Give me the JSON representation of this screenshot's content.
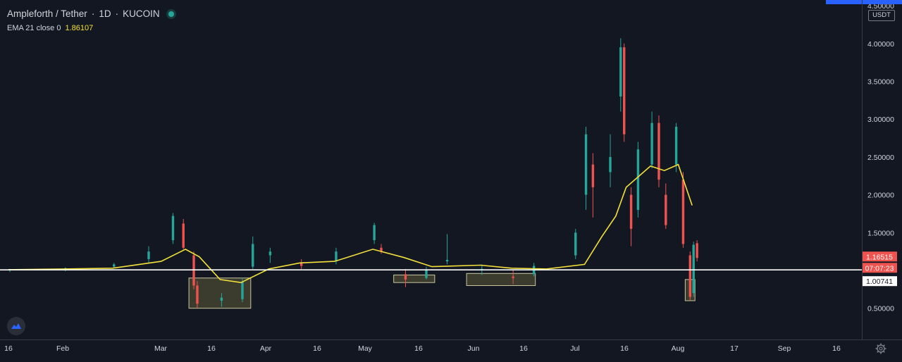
{
  "header": {
    "symbol": "Ampleforth / Tether",
    "sep1": "·",
    "interval": "1D",
    "sep2": "·",
    "exchange": "KUCOIN",
    "indicator_label": "EMA 21 close 0",
    "indicator_value": "1.86107"
  },
  "price_scale": {
    "currency": "USDT",
    "tick_labels": [
      "4.50000",
      "4.00000",
      "3.50000",
      "3.00000",
      "2.50000",
      "2.00000",
      "1.50000",
      "0.50000"
    ]
  },
  "tags": {
    "last_price": "1.16515",
    "countdown": "07:07:23",
    "level": "1.00741"
  },
  "time_axis": {
    "labels": [
      "16",
      "Feb",
      "Mar",
      "16",
      "Apr",
      "16",
      "May",
      "16",
      "Jun",
      "16",
      "Jul",
      "16",
      "Aug",
      "17",
      "Sep",
      "16"
    ]
  },
  "colors": {
    "background": "#131722",
    "up": "#26a69a",
    "down": "#ef5350",
    "ema": "#f3e03b",
    "level_line": "#ffffff",
    "zone_fill": "#4a4a32",
    "zone_stroke": "#c9c6a0"
  },
  "chart_data": {
    "type": "candlestick",
    "title": "Ampleforth / Tether · 1D · KUCOIN",
    "ylim": [
      0.3,
      4.5
    ],
    "ylabel": "USDT",
    "horizontal_level": 1.00741,
    "ema_series": {
      "name": "EMA 21 close 0",
      "x": [
        "Jan 16",
        "Feb 1",
        "Feb 15",
        "Mar 1",
        "Mar 8",
        "Mar 12",
        "Mar 18",
        "Mar 24",
        "Apr 1",
        "Apr 10",
        "Apr 20",
        "May 1",
        "May 10",
        "May 18",
        "Jun 1",
        "Jun 10",
        "Jun 20",
        "Jul 1",
        "Jul 6",
        "Jul 10",
        "Jul 13",
        "Jul 16",
        "Jul 20",
        "Jul 24",
        "Jul 28",
        "Aug 1"
      ],
      "values": [
        1.01,
        1.02,
        1.03,
        1.12,
        1.28,
        1.18,
        0.88,
        0.84,
        1.02,
        1.1,
        1.12,
        1.28,
        1.17,
        1.05,
        1.07,
        1.03,
        1.02,
        1.08,
        1.45,
        1.72,
        2.1,
        2.22,
        2.38,
        2.32,
        2.4,
        1.86
      ]
    },
    "candles": [
      {
        "x": "Jan 16",
        "o": 1.0,
        "h": 1.02,
        "l": 0.98,
        "c": 1.01
      },
      {
        "x": "Feb 1",
        "o": 1.01,
        "h": 1.04,
        "l": 0.99,
        "c": 1.03
      },
      {
        "x": "Feb 15",
        "o": 1.05,
        "h": 1.1,
        "l": 1.03,
        "c": 1.08
      },
      {
        "x": "Feb 25",
        "o": 1.15,
        "h": 1.32,
        "l": 1.1,
        "c": 1.25
      },
      {
        "x": "Mar 4",
        "o": 1.4,
        "h": 1.76,
        "l": 1.35,
        "c": 1.72
      },
      {
        "x": "Mar 7",
        "o": 1.62,
        "h": 1.68,
        "l": 1.28,
        "c": 1.3
      },
      {
        "x": "Mar 10",
        "o": 1.2,
        "h": 1.25,
        "l": 0.75,
        "c": 0.8
      },
      {
        "x": "Mar 11",
        "o": 0.8,
        "h": 0.86,
        "l": 0.5,
        "c": 0.56
      },
      {
        "x": "Mar 18",
        "o": 0.6,
        "h": 0.7,
        "l": 0.52,
        "c": 0.64
      },
      {
        "x": "Mar 24",
        "o": 0.62,
        "h": 0.9,
        "l": 0.58,
        "c": 0.85
      },
      {
        "x": "Mar 27",
        "o": 1.05,
        "h": 1.45,
        "l": 1.02,
        "c": 1.35
      },
      {
        "x": "Apr 1",
        "o": 1.2,
        "h": 1.3,
        "l": 1.1,
        "c": 1.25
      },
      {
        "x": "Apr 10",
        "o": 1.1,
        "h": 1.15,
        "l": 1.02,
        "c": 1.06
      },
      {
        "x": "Apr 20",
        "o": 1.12,
        "h": 1.3,
        "l": 1.08,
        "c": 1.25
      },
      {
        "x": "May 1",
        "o": 1.4,
        "h": 1.63,
        "l": 1.35,
        "c": 1.6
      },
      {
        "x": "May 3",
        "o": 1.3,
        "h": 1.35,
        "l": 1.22,
        "c": 1.25
      },
      {
        "x": "May 10",
        "o": 0.95,
        "h": 1.02,
        "l": 0.78,
        "c": 0.88
      },
      {
        "x": "May 16",
        "o": 0.9,
        "h": 1.05,
        "l": 0.88,
        "c": 1.0
      },
      {
        "x": "May 22",
        "o": 1.12,
        "h": 1.48,
        "l": 1.08,
        "c": 1.14
      },
      {
        "x": "Jun 1",
        "o": 1.0,
        "h": 1.08,
        "l": 0.94,
        "c": 1.02
      },
      {
        "x": "Jun 10",
        "o": 0.92,
        "h": 1.0,
        "l": 0.82,
        "c": 0.9
      },
      {
        "x": "Jun 16",
        "o": 0.95,
        "h": 1.1,
        "l": 0.92,
        "c": 1.06
      },
      {
        "x": "Jun 28",
        "o": 1.2,
        "h": 1.55,
        "l": 1.15,
        "c": 1.5
      },
      {
        "x": "Jul 1",
        "o": 2.0,
        "h": 2.9,
        "l": 1.8,
        "c": 2.8
      },
      {
        "x": "Jul 3",
        "o": 2.4,
        "h": 2.55,
        "l": 1.7,
        "c": 2.1
      },
      {
        "x": "Jul 8",
        "o": 2.3,
        "h": 2.8,
        "l": 2.1,
        "c": 2.5
      },
      {
        "x": "Jul 11",
        "o": 3.3,
        "h": 4.07,
        "l": 3.1,
        "c": 3.95
      },
      {
        "x": "Jul 12",
        "o": 3.95,
        "h": 4.0,
        "l": 2.7,
        "c": 2.8
      },
      {
        "x": "Jul 14",
        "o": 2.0,
        "h": 2.1,
        "l": 1.32,
        "c": 1.55
      },
      {
        "x": "Jul 16",
        "o": 1.8,
        "h": 2.7,
        "l": 1.7,
        "c": 2.6
      },
      {
        "x": "Jul 20",
        "o": 2.4,
        "h": 3.1,
        "l": 2.35,
        "c": 2.95
      },
      {
        "x": "Jul 22",
        "o": 2.95,
        "h": 3.05,
        "l": 2.1,
        "c": 2.2
      },
      {
        "x": "Jul 24",
        "o": 2.0,
        "h": 2.15,
        "l": 1.55,
        "c": 1.6
      },
      {
        "x": "Jul 27",
        "o": 2.4,
        "h": 2.95,
        "l": 2.3,
        "c": 2.9
      },
      {
        "x": "Jul 29",
        "o": 2.2,
        "h": 2.3,
        "l": 1.3,
        "c": 1.35
      },
      {
        "x": "Jul 31",
        "o": 1.2,
        "h": 1.25,
        "l": 0.6,
        "c": 0.65
      },
      {
        "x": "Aug 1",
        "o": 0.7,
        "h": 1.38,
        "l": 0.65,
        "c": 1.34
      },
      {
        "x": "Aug 2",
        "o": 1.36,
        "h": 1.4,
        "l": 1.12,
        "c": 1.165
      }
    ],
    "highlight_zones": [
      {
        "from": "Mar 9",
        "to": "Mar 26",
        "low": 0.5,
        "high": 0.9
      },
      {
        "from": "May 7",
        "to": "May 18",
        "low": 0.84,
        "high": 0.94
      },
      {
        "from": "May 28",
        "to": "Jun 16",
        "low": 0.8,
        "high": 0.96
      },
      {
        "from": "Jul 30",
        "to": "Aug 1",
        "low": 0.6,
        "high": 0.88
      }
    ]
  }
}
